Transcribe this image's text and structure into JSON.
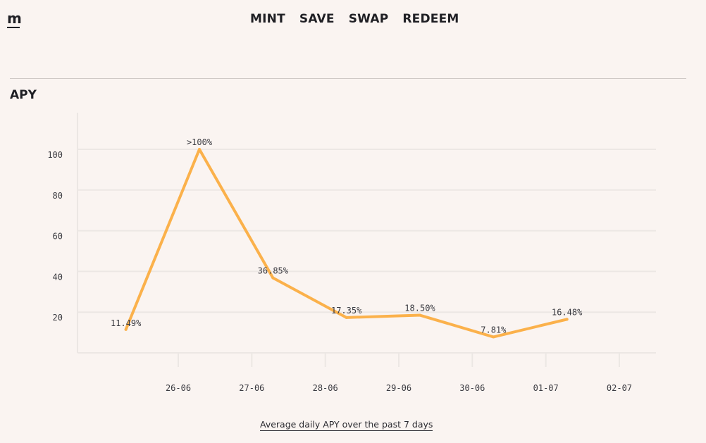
{
  "header": {
    "logo_text": "m",
    "nav": [
      {
        "label": "MINT"
      },
      {
        "label": "SAVE"
      },
      {
        "label": "SWAP"
      },
      {
        "label": "REDEEM"
      }
    ]
  },
  "section": {
    "title": "APY",
    "caption": "Average daily APY over the past 7 days"
  },
  "colors": {
    "line": "#fbb14b",
    "grid": "#ece7e4",
    "background": "#faf4f1"
  },
  "chart_data": {
    "type": "line",
    "title": "",
    "xlabel": "",
    "ylabel": "",
    "x_ticks": [
      "26-06",
      "27-06",
      "28-06",
      "29-06",
      "30-06",
      "01-07",
      "02-07"
    ],
    "y_ticks": [
      20,
      40,
      60,
      80,
      100
    ],
    "ylim": [
      0,
      100
    ],
    "grid": true,
    "points": [
      {
        "x": "25-06",
        "y": 11.49,
        "label": "11.49%"
      },
      {
        "x": "26-06",
        "y": 100,
        "label": ">100%"
      },
      {
        "x": "27-06",
        "y": 36.85,
        "label": "36.85%"
      },
      {
        "x": "28-06",
        "y": 17.35,
        "label": "17.35%"
      },
      {
        "x": "29-06",
        "y": 18.5,
        "label": "18.50%"
      },
      {
        "x": "30-06",
        "y": 7.81,
        "label": "7.81%"
      },
      {
        "x": "01-07",
        "y": 16.48,
        "label": "16.48%"
      }
    ]
  }
}
